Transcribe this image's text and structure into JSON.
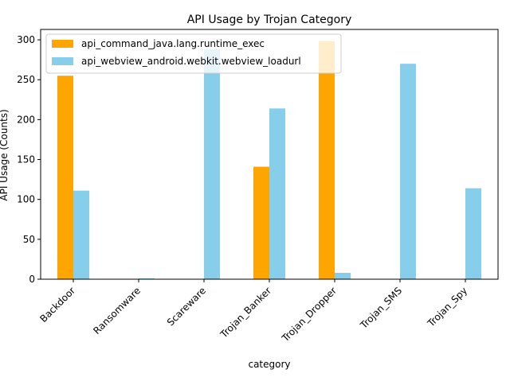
{
  "chart_data": {
    "type": "bar",
    "title": "API Usage by Trojan Category",
    "xlabel": "category",
    "ylabel": "API Usage (Counts)",
    "categories": [
      "Backdoor",
      "Ransomware",
      "Scareware",
      "Trojan_Banker",
      "Trojan_Dropper",
      "Trojan_SMS",
      "Trojan_Spy"
    ],
    "series": [
      {
        "name": "api_command_java.lang.runtime_exec",
        "color": "#FFA500",
        "values": [
          255,
          0,
          0,
          141,
          298,
          0,
          0
        ]
      },
      {
        "name": "api_webview_android.webkit.webview_loadurl",
        "color": "#87CEEB",
        "values": [
          111,
          1,
          288,
          214,
          8,
          270,
          114
        ]
      }
    ],
    "ylim": [
      0,
      313
    ],
    "yticks": [
      0,
      50,
      100,
      150,
      200,
      250,
      300
    ],
    "grid": false,
    "legend_position": "upper-left"
  }
}
